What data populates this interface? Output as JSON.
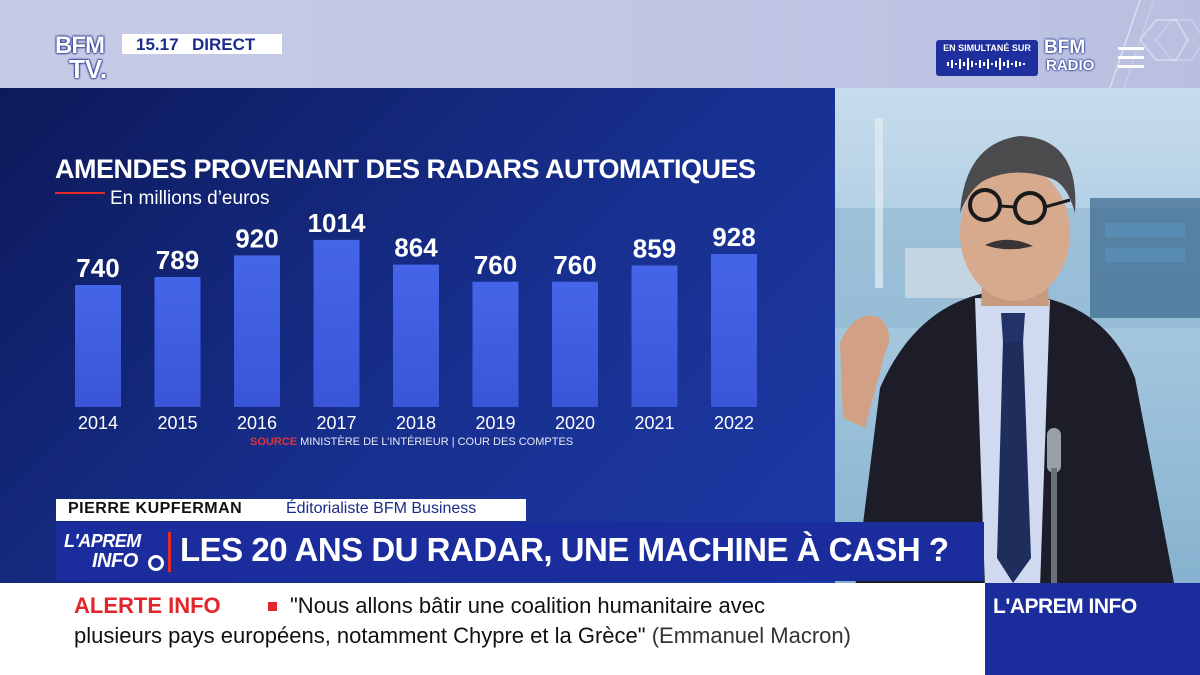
{
  "header": {
    "channel_logo_line1": "BFM",
    "channel_logo_line2": "TV.",
    "time": "15.17",
    "live_label": "DIRECT",
    "simulcast_label": "EN SIMULTANÉ SUR",
    "radio_logo_line1": "BFM",
    "radio_logo_line2": "RADIO",
    "menu_icon": "hamburger-menu-icon"
  },
  "chart_data": {
    "type": "bar",
    "title": "AMENDES PROVENANT DES RADARS AUTOMATIQUES",
    "subtitle": "En millions d’euros",
    "categories": [
      "2014",
      "2015",
      "2016",
      "2017",
      "2018",
      "2019",
      "2020",
      "2021",
      "2022"
    ],
    "values": [
      740,
      789,
      920,
      1014,
      864,
      760,
      760,
      859,
      928
    ],
    "data_labels": [
      "740",
      "789",
      "920",
      "1014",
      "864",
      "760",
      "760",
      "859",
      "928"
    ],
    "source_label": "SOURCE",
    "source_text": "MINISTÈRE DE L’INTÉRIEUR | COUR DES COMPTES",
    "bar_color": "#3a55d8",
    "grid": false
  },
  "strap": {
    "name": "PIERRE KUPFERMAN",
    "role": "Éditorialiste BFM Business"
  },
  "headline": {
    "show_logo_line1": "L'APREM",
    "show_logo_line2": "INFO",
    "text": "LES 20 ANS DU RADAR, UNE MACHINE À CASH ?"
  },
  "ticker": {
    "label": "ALERTE INFO",
    "line1": "\"Nous allons bâtir une coalition humanitaire avec",
    "line2": "plusieurs pays européens, notamment Chypre et la Grèce\"",
    "attribution": "(Emmanuel Macron)"
  },
  "show_box": {
    "text": "L'APREM INFO"
  },
  "colors": {
    "brand_blue": "#1b2c9c",
    "alert_red": "#e3262b",
    "top_band": "#c3c8e5"
  }
}
